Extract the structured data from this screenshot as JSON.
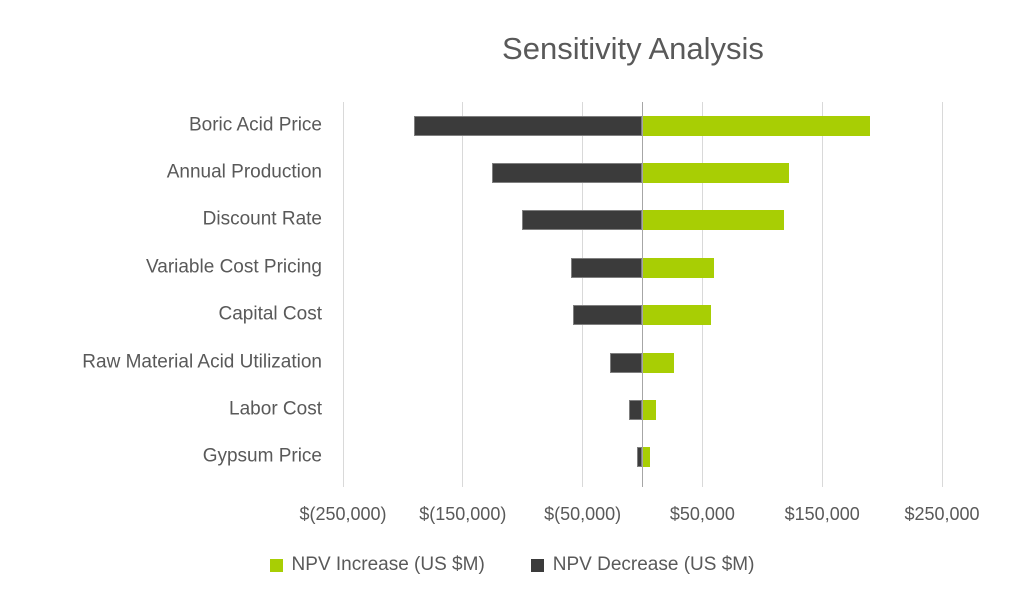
{
  "colors": {
    "npv_increase": "#A8CE04",
    "npv_decrease": "#3B3B3B",
    "decrease_bar_border": "#7F7F7F",
    "text": "#595959",
    "gridline": "#D9D9D9",
    "axis_line": "#A6A6A6",
    "background": "#FFFFFF"
  },
  "legend": [
    {
      "label": "NPV Increase (US $M)",
      "color": "#A8CE04",
      "key": "increase"
    },
    {
      "label": "NPV Decrease (US $M)",
      "color": "#3B3B3B",
      "key": "decrease"
    }
  ],
  "chart_data": {
    "type": "bar",
    "orientation": "horizontal",
    "subtype": "tornado",
    "title": "Sensitivity Analysis",
    "xlabel": "",
    "ylabel": "",
    "grid": "vertical",
    "legend_position": "bottom",
    "xlim": [
      -250000,
      250000
    ],
    "categories": [
      "Boric Acid Price",
      "Annual Production",
      "Discount Rate",
      "Variable Cost Pricing",
      "Capital Cost",
      "Raw Material Acid Utilization",
      "Labor Cost",
      "Gypsum Price"
    ],
    "series": [
      {
        "name": "NPV Increase (US $M)",
        "key": "increase",
        "color": "#A8CE04",
        "values": [
          190000,
          122000,
          118000,
          60000,
          57000,
          26000,
          11000,
          6000
        ]
      },
      {
        "name": "NPV Decrease (US $M)",
        "key": "decrease",
        "color": "#3B3B3B",
        "values": [
          -191000,
          -126000,
          -101000,
          -60000,
          -58000,
          -27000,
          -11000,
          -5000
        ]
      }
    ],
    "x_ticks": [
      {
        "value": -250000,
        "label": "$(250,000)"
      },
      {
        "value": -150000,
        "label": "$(150,000)"
      },
      {
        "value": -50000,
        "label": "$(50,000)"
      },
      {
        "value": 50000,
        "label": "$50,000"
      },
      {
        "value": 150000,
        "label": "$150,000"
      },
      {
        "value": 250000,
        "label": "$250,000"
      }
    ]
  }
}
